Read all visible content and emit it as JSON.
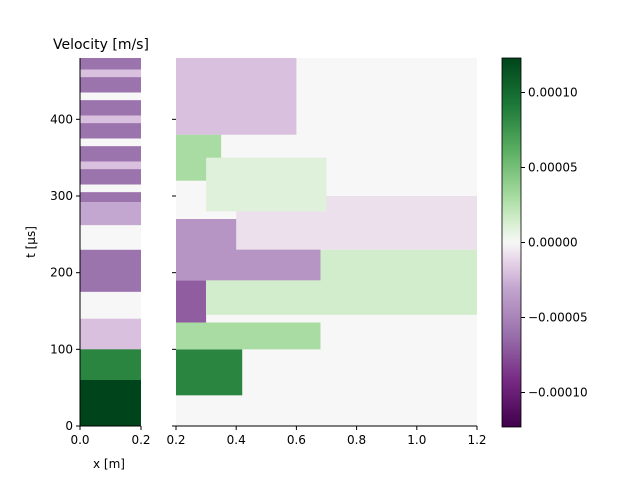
{
  "chart_data": {
    "type": "heatmap",
    "title": "Velocity [m/s]",
    "xlabel": "x [m]",
    "ylabel": "t [µs]",
    "colormap": "PRGn",
    "colorbar_range": [
      -0.000123,
      0.000123
    ],
    "colorbar_ticks": [
      "0.00010",
      "0.00005",
      "0.00000",
      "−0.00005",
      "−0.00010"
    ],
    "colorbar_tick_values": [
      0.0001,
      5e-05,
      0,
      -5e-05,
      -0.0001
    ],
    "panels": [
      {
        "name": "left",
        "xlim": [
          0.0,
          0.2
        ],
        "ylim": [
          0,
          480
        ],
        "x_ticks": [
          "0.0",
          "0.2"
        ],
        "x_tick_values": [
          0.0,
          0.2
        ],
        "y_ticks": [
          "0",
          "100",
          "200",
          "300",
          "400"
        ],
        "y_tick_values": [
          0,
          100,
          200,
          300,
          400
        ],
        "regions": [
          {
            "t0": 0,
            "t1": 72,
            "x0": 0.0,
            "x1": 0.2,
            "v": 0.000123
          },
          {
            "t0": 60,
            "t1": 104,
            "x0": 0.0,
            "x1": 0.2,
            "v": 8.5e-05
          },
          {
            "t0": 100,
            "t1": 140,
            "x0": 0.0,
            "x1": 0.2,
            "v": -2e-05
          },
          {
            "t0": 142,
            "t1": 175,
            "x0": 0.0,
            "x1": 0.2,
            "v": 0.0
          },
          {
            "t0": 175,
            "t1": 230,
            "x0": 0.0,
            "x1": 0.2,
            "v": -6e-05
          },
          {
            "t0": 230,
            "t1": 262,
            "x0": 0.0,
            "x1": 0.2,
            "v": 0.0
          },
          {
            "t0": 262,
            "t1": 292,
            "x0": 0.0,
            "x1": 0.2,
            "v": -3e-05
          },
          {
            "t0": 292,
            "t1": 480,
            "x0": 0.0,
            "x1": 0.2,
            "v": -6e-05
          },
          {
            "t0": 305,
            "t1": 315,
            "x0": 0.0,
            "x1": 0.2,
            "v": 0.0
          },
          {
            "t0": 335,
            "t1": 345,
            "x0": 0.0,
            "x1": 0.2,
            "v": -2e-05
          },
          {
            "t0": 365,
            "t1": 375,
            "x0": 0.0,
            "x1": 0.2,
            "v": 0.0
          },
          {
            "t0": 395,
            "t1": 405,
            "x0": 0.0,
            "x1": 0.2,
            "v": -2e-05
          },
          {
            "t0": 425,
            "t1": 435,
            "x0": 0.0,
            "x1": 0.2,
            "v": 0.0
          },
          {
            "t0": 455,
            "t1": 465,
            "x0": 0.0,
            "x1": 0.2,
            "v": -2e-05
          }
        ]
      },
      {
        "name": "right",
        "xlim": [
          0.2,
          1.2
        ],
        "ylim": [
          0,
          480
        ],
        "x_ticks": [
          "0.2",
          "0.4",
          "0.6",
          "0.8",
          "1.0",
          "1.2"
        ],
        "x_tick_values": [
          0.2,
          0.4,
          0.6,
          0.8,
          1.0,
          1.2
        ],
        "regions": [
          {
            "t0": 40,
            "t1": 100,
            "x0": 0.2,
            "x1": 0.42,
            "v": 8.5e-05
          },
          {
            "t0": 100,
            "t1": 135,
            "x0": 0.2,
            "x1": 0.68,
            "v": 3e-05
          },
          {
            "t0": 135,
            "t1": 190,
            "x0": 0.2,
            "x1": 0.3,
            "v": -7e-05
          },
          {
            "t0": 145,
            "t1": 230,
            "x0": 0.3,
            "x1": 1.2,
            "v": 1.5e-05
          },
          {
            "t0": 190,
            "t1": 270,
            "x0": 0.2,
            "x1": 0.68,
            "v": -4e-05
          },
          {
            "t0": 230,
            "t1": 300,
            "x0": 0.4,
            "x1": 1.2,
            "v": -8e-06
          },
          {
            "t0": 320,
            "t1": 380,
            "x0": 0.2,
            "x1": 0.35,
            "v": 3e-05
          },
          {
            "t0": 280,
            "t1": 350,
            "x0": 0.3,
            "x1": 0.7,
            "v": 1e-05
          },
          {
            "t0": 380,
            "t1": 480,
            "x0": 0.2,
            "x1": 0.6,
            "v": -2e-05
          }
        ]
      }
    ],
    "colorbar_label": ""
  }
}
